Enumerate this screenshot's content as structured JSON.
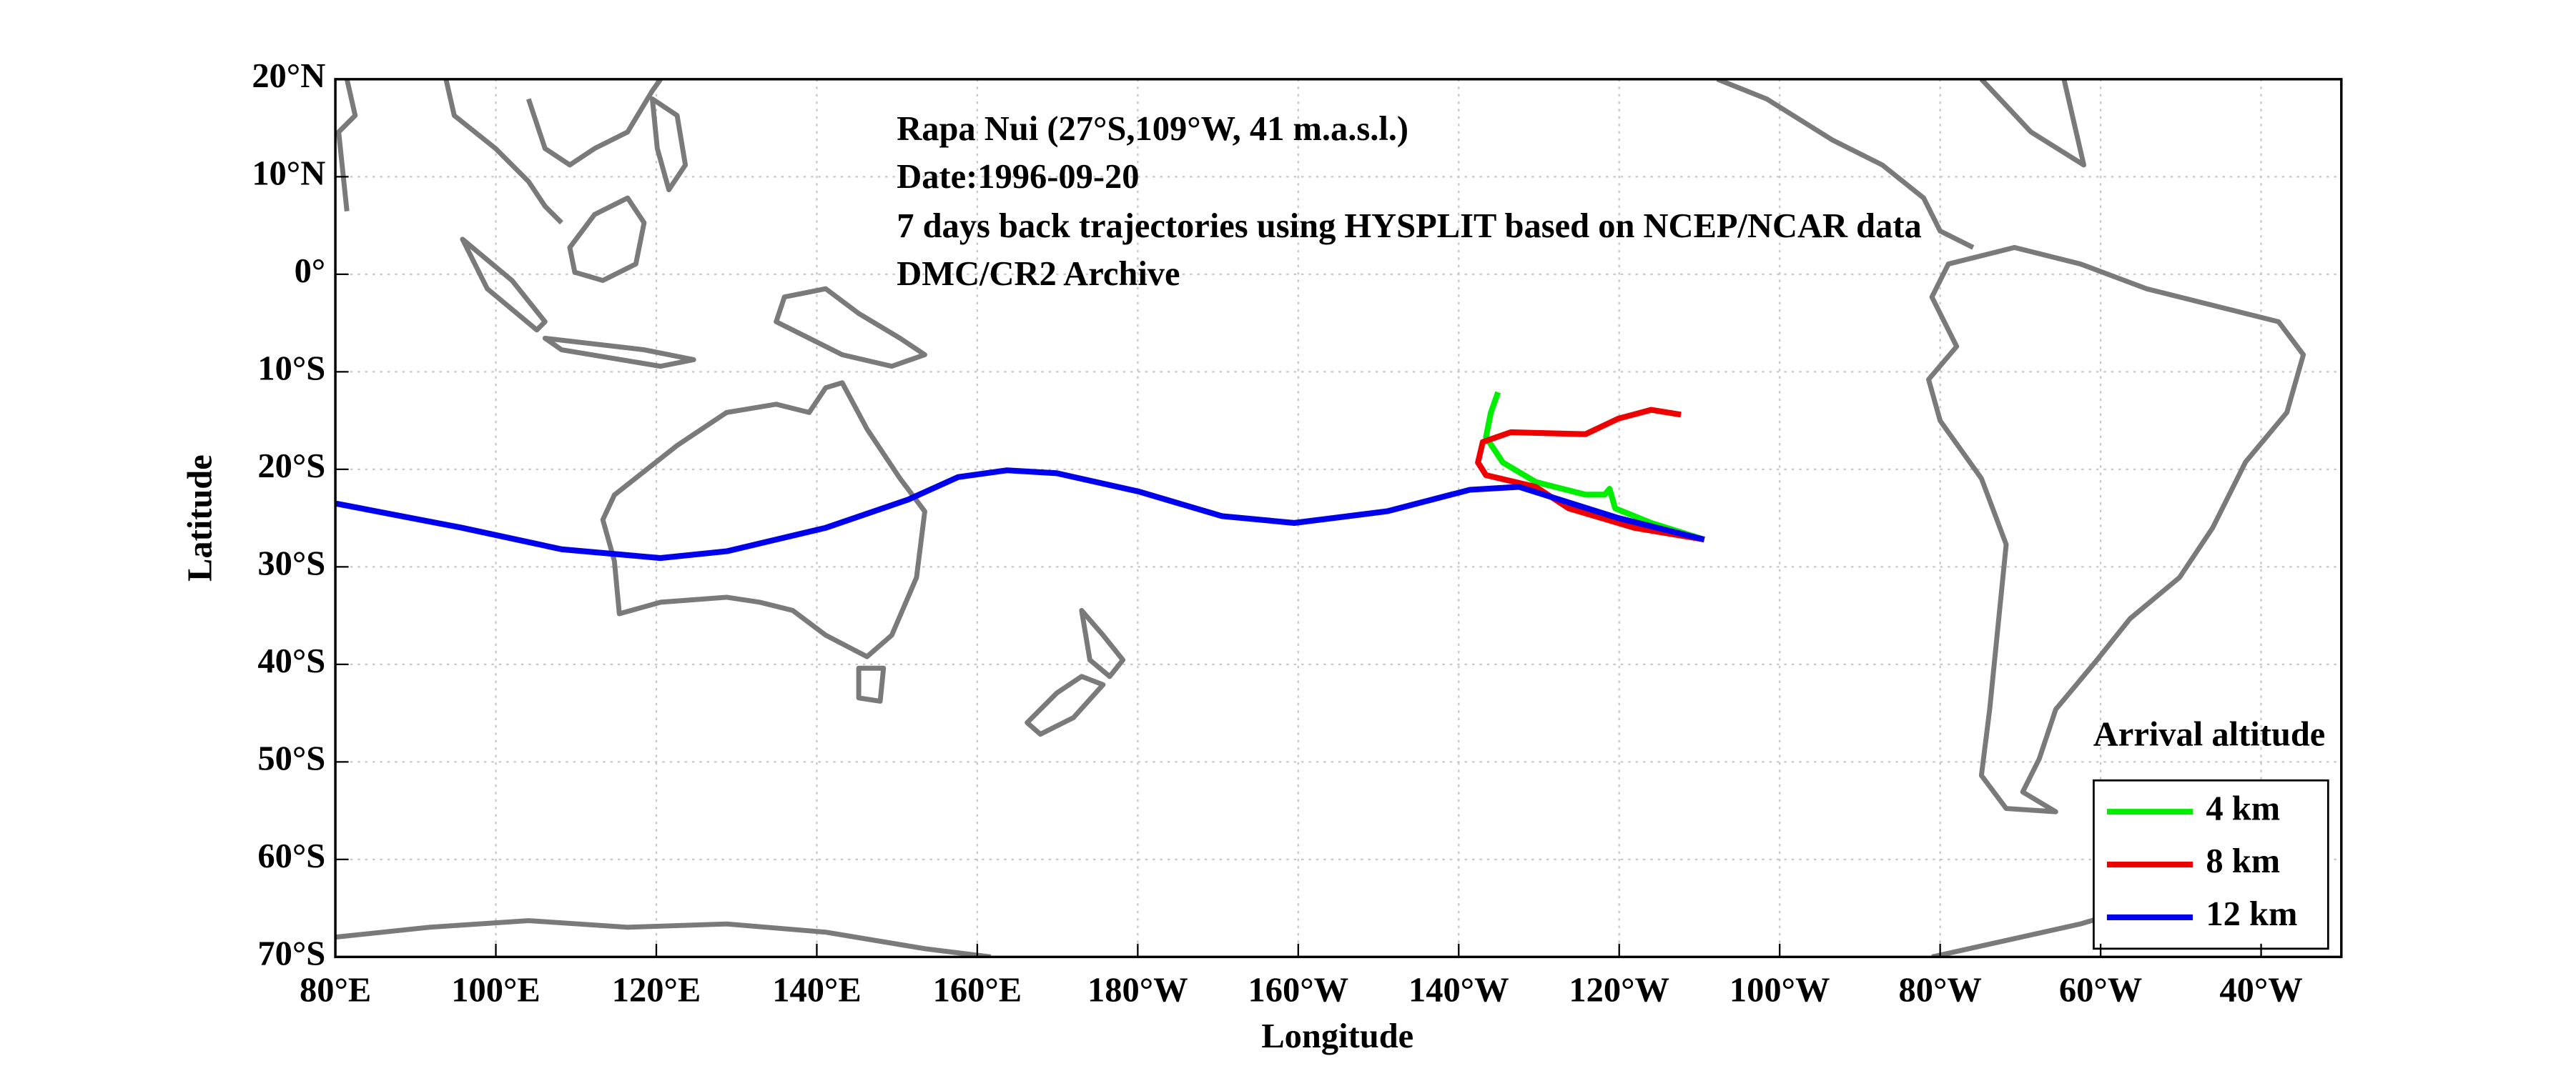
{
  "chart_data": {
    "type": "line",
    "annotations": [
      "Rapa Nui (27°S,109°W, 41 m.a.s.l.)",
      "Date:1996-09-20",
      "7 days back trajectories using HYSPLIT based on NCEP/NCAR data",
      "DMC/CR2 Archive"
    ],
    "xlabel": "Longitude",
    "ylabel": "Latitude",
    "xlim": [
      80,
      330
    ],
    "ylim": [
      -70,
      20
    ],
    "xticks": [
      {
        "value": 80,
        "label": "80°E"
      },
      {
        "value": 100,
        "label": "100°E"
      },
      {
        "value": 120,
        "label": "120°E"
      },
      {
        "value": 140,
        "label": "140°E"
      },
      {
        "value": 160,
        "label": "160°E"
      },
      {
        "value": 180,
        "label": "180°W"
      },
      {
        "value": 200,
        "label": "160°W"
      },
      {
        "value": 220,
        "label": "140°W"
      },
      {
        "value": 240,
        "label": "120°W"
      },
      {
        "value": 260,
        "label": "100°W"
      },
      {
        "value": 280,
        "label": "80°W"
      },
      {
        "value": 300,
        "label": "60°W"
      },
      {
        "value": 320,
        "label": "40°W"
      }
    ],
    "yticks": [
      {
        "value": 20,
        "label": "20°N"
      },
      {
        "value": 10,
        "label": "10°N"
      },
      {
        "value": 0,
        "label": "0°"
      },
      {
        "value": -10,
        "label": "10°S"
      },
      {
        "value": -20,
        "label": "20°S"
      },
      {
        "value": -30,
        "label": "30°S"
      },
      {
        "value": -40,
        "label": "40°S"
      },
      {
        "value": -50,
        "label": "50°S"
      },
      {
        "value": -60,
        "label": "60°S"
      },
      {
        "value": -70,
        "label": "70°S"
      }
    ],
    "grid": true,
    "legend_title": "Arrival altitude",
    "legend_position": "lower right",
    "series": [
      {
        "name": "4 km",
        "color": "#00ee00",
        "x": [
          250.6,
          244,
          239.5,
          238.8,
          238.2,
          235.8,
          229.6,
          225.5,
          223.4,
          224,
          224.9
        ],
        "values": [
          -27.2,
          -25.5,
          -24,
          -22,
          -22.6,
          -22.6,
          -21.3,
          -19.3,
          -16.7,
          -14.2,
          -12.1
        ]
      },
      {
        "name": "8 km",
        "color": "#ee0000",
        "x": [
          250.6,
          241.9,
          233.7,
          229.6,
          223.4,
          222.4,
          223,
          226.5,
          235.8,
          239.9,
          244,
          247.7
        ],
        "values": [
          -27.2,
          -26,
          -24,
          -21.8,
          -20.6,
          -19.3,
          -17.2,
          -16.2,
          -16.4,
          -14.8,
          -13.9,
          -14.4
        ]
      },
      {
        "name": "12 km",
        "color": "#0000ee",
        "x": [
          250.6,
          239.9,
          227.5,
          221.4,
          211.1,
          199.5,
          190.5,
          180.2,
          169.9,
          163.7,
          157.6,
          151.4,
          141.1,
          128.8,
          120.5,
          108.2,
          95.8,
          80
        ],
        "values": [
          -27.2,
          -25,
          -21.8,
          -22.1,
          -24.3,
          -25.5,
          -24.8,
          -22.3,
          -20.4,
          -20.1,
          -20.8,
          -23.1,
          -26,
          -28.4,
          -29.1,
          -28.2,
          -26,
          -23.5
        ]
      }
    ]
  }
}
